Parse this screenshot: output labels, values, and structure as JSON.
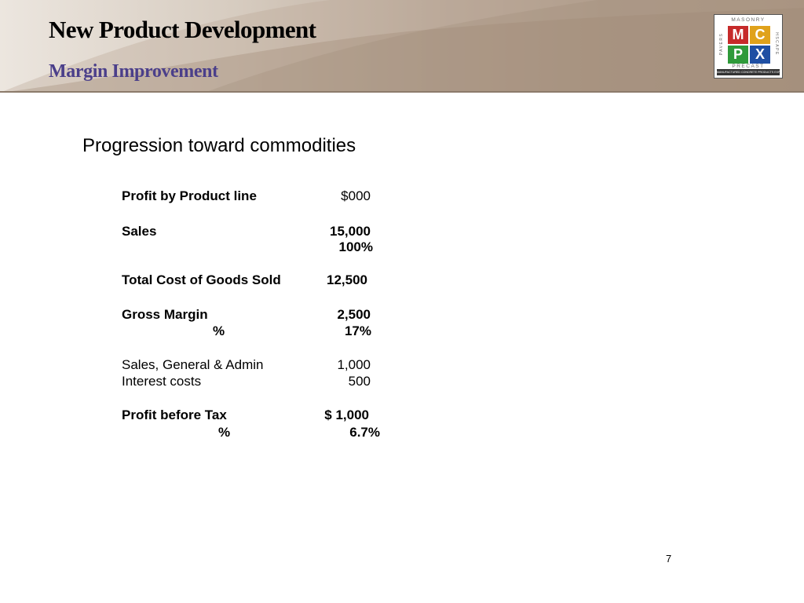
{
  "header": {
    "title": "New Product Development",
    "subtitle": "Margin Improvement"
  },
  "logo": {
    "top_text": "MASONRY",
    "left_text": "PAVERS",
    "right_text": "HSCAPE",
    "bottom_text": "PRECAST",
    "letters": [
      "M",
      "C",
      "P",
      "X"
    ],
    "strip_text": "MANUFACTURED CONCRETE PRODUCTS EXPO",
    "colors": [
      "#c62a2a",
      "#e0a21b",
      "#2f9a3a",
      "#1f4fa3"
    ]
  },
  "content": {
    "heading": "Progression toward commodities",
    "rows": [
      {
        "label": "Profit by Product line",
        "value": "$000",
        "bold_label": true
      },
      {
        "label": "Sales",
        "value": "15,000",
        "bold_label": true
      },
      {
        "label": "",
        "value": "100%",
        "bold_label": true
      },
      {
        "label": "Total Cost of Goods Sold",
        "value": "12,500",
        "bold_label": true
      },
      {
        "label": "Gross Margin",
        "value": "2,500",
        "bold_label": true
      },
      {
        "label": "%",
        "value": "17%",
        "bold_label": true
      },
      {
        "label": "Sales, General & Admin",
        "value": "1,000",
        "bold_label": false
      },
      {
        "label": "Interest costs",
        "value": "500",
        "bold_label": false
      },
      {
        "label": "Profit before Tax",
        "value": "$ 1,000",
        "bold_label": true
      },
      {
        "label": "%",
        "value": "6.7%",
        "bold_label": true
      }
    ]
  },
  "footer": {
    "page_number": "7"
  }
}
